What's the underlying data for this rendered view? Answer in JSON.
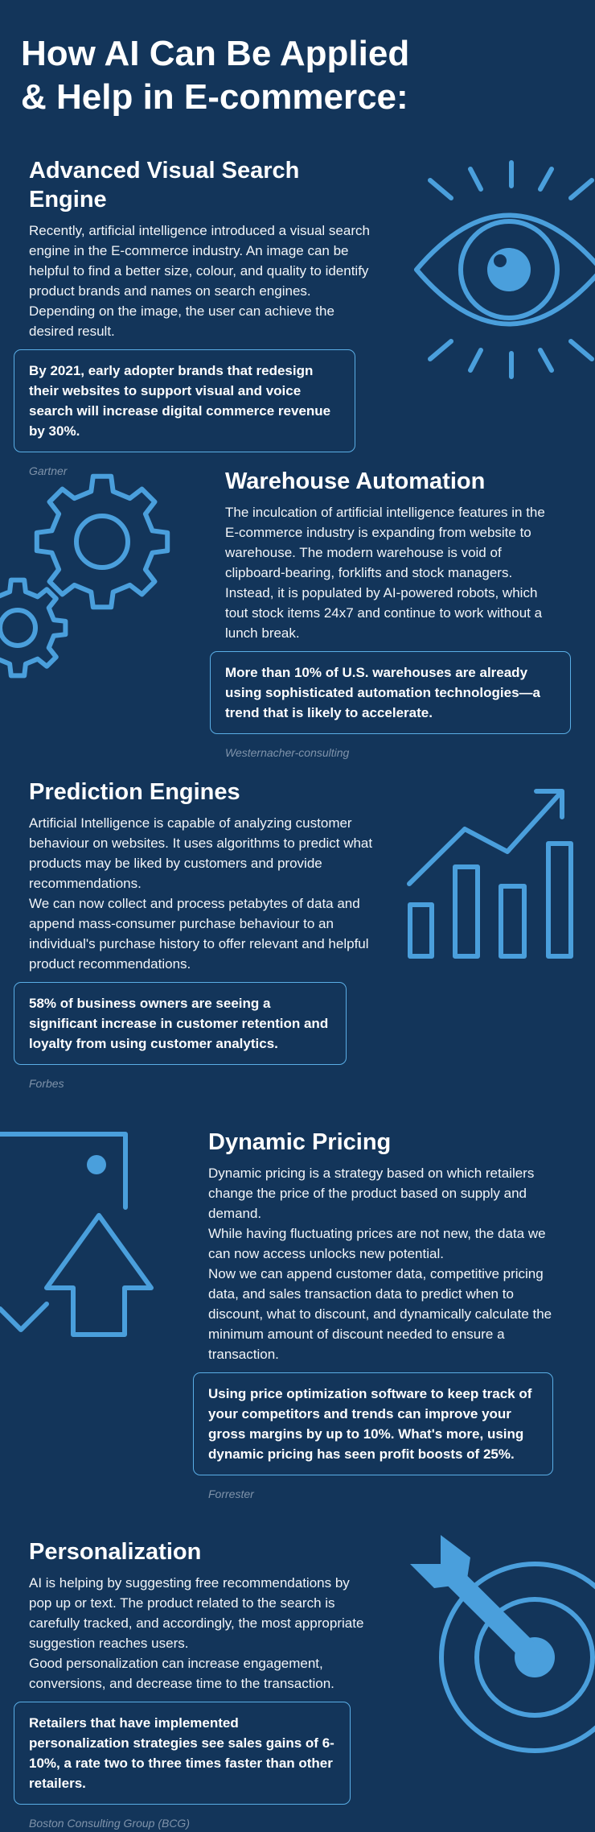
{
  "header": {
    "title_lines": [
      "How AI Can Be Applied",
      "& Help in E-commerce:"
    ]
  },
  "sections": [
    {
      "heading": "Advanced Visual Search Engine",
      "paragraphs": [
        "Recently, artificial intelligence introduced a visual search engine in the E-commerce industry. An image can be helpful to find a better size, colour, and quality to identify product brands and names on search engines. Depending on the image, the user can achieve the desired result."
      ],
      "stat": "By 2021, early adopter brands that redesign their websites to support visual and voice search will increase digital commerce revenue by 30%.",
      "source": "Gartner"
    },
    {
      "heading": "Warehouse Automation",
      "paragraphs": [
        "The inculcation of artificial intelligence features in the E-commerce industry is expanding from website to warehouse. The modern warehouse is void of clipboard-bearing, forklifts and stock managers. Instead, it is populated by AI-powered robots, which tout stock items 24x7 and continue to work without a lunch break."
      ],
      "stat": "More than 10% of U.S. warehouses are already using sophisticated automation technologies—a trend that is likely to accelerate.",
      "source": "Westernacher-consulting"
    },
    {
      "heading": "Prediction Engines",
      "paragraphs": [
        "Artificial Intelligence is capable of analyzing customer behaviour on websites. It uses algorithms to predict what products may be liked by customers and provide recommendations.",
        "We can now collect and process petabytes of data and append mass-consumer purchase behaviour to an individual's purchase history to offer relevant and helpful product recommendations."
      ],
      "stat": "58% of business owners are seeing a significant increase in customer retention and loyalty from using customer analytics.",
      "source": "Forbes"
    },
    {
      "heading": "Dynamic Pricing",
      "paragraphs": [
        "Dynamic pricing is a strategy based on which retailers change the price of the product based on supply and demand.",
        "While having fluctuating prices are not new, the data we can now access unlocks new potential.",
        "Now we can append customer data, competitive pricing data, and sales transaction data to predict when to discount, what to discount, and dynamically calculate the minimum amount of discount needed to ensure a transaction."
      ],
      "stat": "Using price optimization software to keep track of your competitors and trends can improve your gross margins by up to 10%. What's more, using dynamic pricing has seen profit boosts of 25%.",
      "source": "Forrester"
    },
    {
      "heading": "Personalization",
      "paragraphs": [
        "AI is helping by suggesting free recommendations by pop up or text. The product related to the search is carefully tracked, and accordingly, the most appropriate suggestion reaches users.",
        "Good personalization can increase engagement, conversions, and decrease time to the transaction."
      ],
      "stat": "Retailers that have implemented personalization strategies see sales gains of 6-10%, a rate two to three times faster than other retailers.",
      "source": "Boston Consulting Group (BCG)"
    }
  ]
}
